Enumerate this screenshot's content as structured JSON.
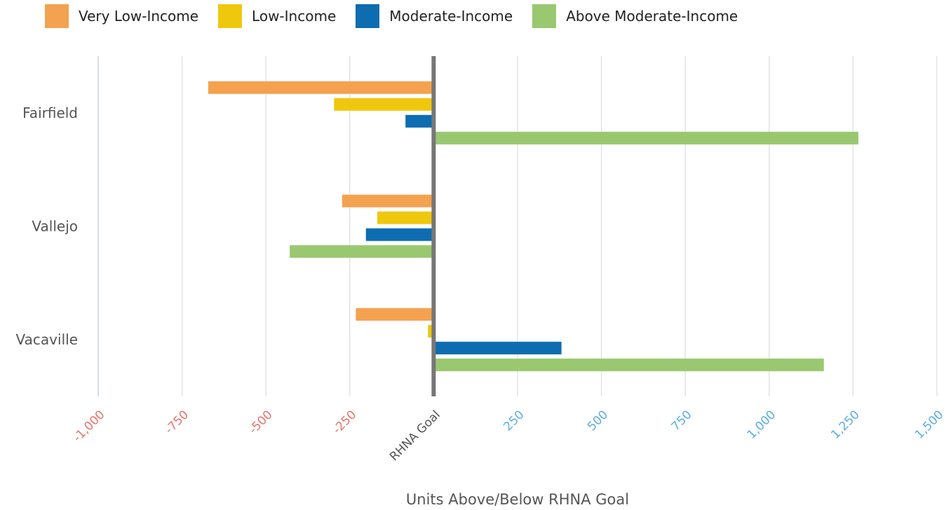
{
  "chart_data": {
    "type": "bar",
    "orientation": "horizontal",
    "categories": [
      "Fairfield",
      "Vallejo",
      "Vacaville"
    ],
    "series": [
      {
        "name": "Very Low-Income",
        "color": "#F4A24F",
        "values": [
          -672,
          -273,
          -232
        ]
      },
      {
        "name": "Low-Income",
        "color": "#EFC80E",
        "values": [
          -297,
          -168,
          -17
        ]
      },
      {
        "name": "Moderate-Income",
        "color": "#0D6DB0",
        "values": [
          -84,
          -202,
          381
        ]
      },
      {
        "name": "Above Moderate-Income",
        "color": "#9AC870",
        "values": [
          1266,
          -429,
          1163
        ]
      }
    ],
    "xlim": [
      -1000,
      1500
    ],
    "x_ticks": [
      {
        "value": -1000,
        "label": "-1,000",
        "color": "#E8746A"
      },
      {
        "value": -750,
        "label": "-750",
        "color": "#E8746A"
      },
      {
        "value": -500,
        "label": "-500",
        "color": "#E8746A"
      },
      {
        "value": -250,
        "label": "-250",
        "color": "#E8746A"
      },
      {
        "value": 0,
        "label": "RHNA Goal",
        "color": "#555555"
      },
      {
        "value": 250,
        "label": "250",
        "color": "#5AAEE6"
      },
      {
        "value": 500,
        "label": "500",
        "color": "#5AAEE6"
      },
      {
        "value": 750,
        "label": "750",
        "color": "#5AAEE6"
      },
      {
        "value": 1000,
        "label": "1,000",
        "color": "#5AAEE6"
      },
      {
        "value": 1250,
        "label": "1,250",
        "color": "#5AAEE6"
      },
      {
        "value": 1500,
        "label": "1,500",
        "color": "#5AAEE6"
      }
    ],
    "xlabel": "Units Above/Below RHNA Goal",
    "ylabel": "",
    "grid": true,
    "legend_position": "top"
  }
}
